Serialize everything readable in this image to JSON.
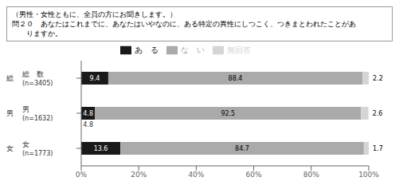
{
  "chart_data": {
    "type": "bar",
    "orientation": "horizontal",
    "stacked": true,
    "title": "（男性・女性ともに、全員の方にお聞きします。）",
    "subtitle": [
      "問２０　あなたはこれまでに、あなたはいやなのに、ある特定の異性にしつこく、つきまとわれたことがあ",
      "　　りますか。"
    ],
    "categories": [
      "総　数",
      "男",
      "女"
    ],
    "series": [
      {
        "name": "あ　る",
        "color": "#1a1a1a",
        "values": [
          9.4,
          4.8,
          13.6
        ]
      },
      {
        "name": "な　い",
        "color": "#aaaaaa",
        "values": [
          88.4,
          92.5,
          84.7
        ]
      },
      {
        "name": "無回答",
        "color": "#d5d5d5",
        "values": [
          2.2,
          2.6,
          1.7
        ]
      }
    ],
    "xlim": [
      0,
      100
    ],
    "xticks": [
      {
        "value": 0,
        "label": "0%"
      },
      {
        "value": 20,
        "label": "20%"
      },
      {
        "value": 40,
        "label": "40%"
      },
      {
        "value": 60,
        "label": "60%"
      },
      {
        "value": 80,
        "label": "80%"
      },
      {
        "value": 100,
        "label": "100%"
      }
    ],
    "data_labels": true,
    "legend": "top",
    "grid": false,
    "annotations": [
      {
        "category": "総　数",
        "text": "(n=3405)"
      },
      {
        "category": "総　数",
        "text": "総"
      },
      {
        "category": "男",
        "text": "(n=1632)"
      },
      {
        "category": "男",
        "text": "男"
      },
      {
        "category": "女",
        "text": "(n=1773)"
      },
      {
        "category": "女",
        "text": "女"
      },
      {
        "category": "男",
        "series": "あ　る",
        "text": "4.8"
      }
    ]
  }
}
